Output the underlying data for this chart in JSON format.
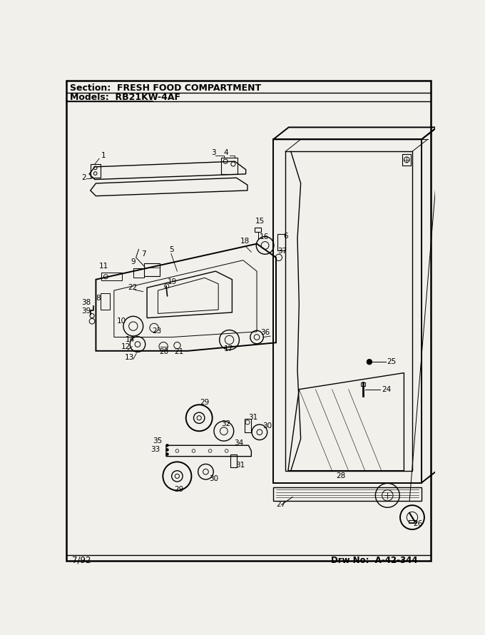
{
  "section_text": "Section:  FRESH FOOD COMPARTMENT",
  "models_text": "Models:  RB21KW-4AF",
  "footer_left": "7/92",
  "footer_right": "Drw No:  A-42-344",
  "bg_color": "#f2f0eb",
  "text_color": "#111111",
  "title_fontsize": 9,
  "label_fontsize": 7.5,
  "small_fontsize": 7
}
